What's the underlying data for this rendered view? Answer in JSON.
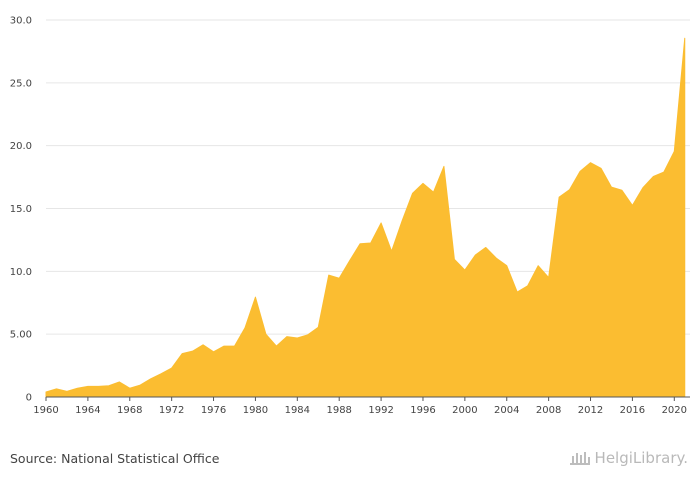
{
  "chart_data": {
    "type": "area",
    "x": [
      1960,
      1961,
      1962,
      1963,
      1964,
      1965,
      1966,
      1967,
      1968,
      1969,
      1970,
      1971,
      1972,
      1973,
      1974,
      1975,
      1976,
      1977,
      1978,
      1979,
      1980,
      1981,
      1982,
      1983,
      1984,
      1985,
      1986,
      1987,
      1988,
      1989,
      1990,
      1991,
      1992,
      1993,
      1994,
      1995,
      1996,
      1997,
      1998,
      1999,
      2000,
      2001,
      2002,
      2003,
      2004,
      2005,
      2006,
      2007,
      2008,
      2009,
      2010,
      2011,
      2012,
      2013,
      2014,
      2015,
      2016,
      2017,
      2018,
      2019,
      2020,
      2021
    ],
    "values": [
      0.4,
      0.65,
      0.45,
      0.7,
      0.85,
      0.85,
      0.9,
      1.2,
      0.7,
      0.95,
      1.45,
      1.85,
      2.3,
      3.45,
      3.65,
      4.15,
      3.6,
      4.05,
      4.05,
      5.5,
      7.95,
      5.0,
      4.05,
      4.8,
      4.7,
      4.95,
      5.55,
      9.7,
      9.45,
      10.85,
      12.2,
      12.25,
      13.85,
      11.6,
      14.0,
      16.2,
      17.0,
      16.3,
      18.35,
      10.95,
      10.1,
      11.3,
      11.9,
      11.05,
      10.45,
      8.35,
      8.85,
      10.45,
      9.5,
      15.9,
      16.5,
      17.95,
      18.65,
      18.2,
      16.7,
      16.45,
      15.25,
      16.65,
      17.55,
      17.9,
      19.55,
      28.55
    ],
    "ylim": [
      0,
      30
    ],
    "yticks": [
      "0",
      "5.00",
      "10.0",
      "15.0",
      "20.0",
      "25.0",
      "30.0"
    ],
    "xticks": [
      "1960",
      "1964",
      "1968",
      "1972",
      "1976",
      "1980",
      "1984",
      "1988",
      "1992",
      "1996",
      "2000",
      "2004",
      "2008",
      "2012",
      "2016",
      "2020"
    ],
    "grid": true,
    "title": "",
    "xlabel": "",
    "ylabel": ""
  },
  "colors": {
    "fill": "#fbbd31",
    "grid": "#e6e6e6",
    "axis": "#555555"
  },
  "footer": {
    "source": "Source: National Statistical Office",
    "logo_text": "HelgiLibrary."
  }
}
